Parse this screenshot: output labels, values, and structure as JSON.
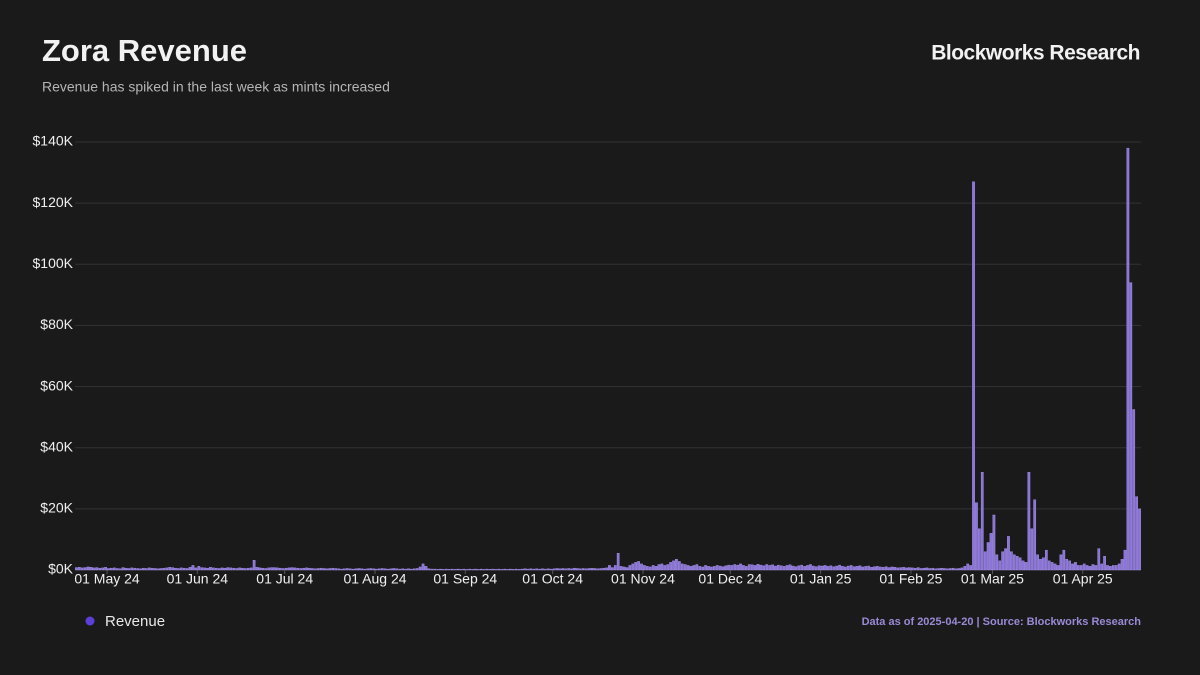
{
  "chart_data": {
    "type": "bar",
    "title": "Zora Revenue",
    "subtitle": "Revenue has spiked in the last week as mints increased",
    "brand": "Blockworks Research",
    "source_note": "Data as of 2025-04-20 | Source: Blockworks Research",
    "series": [
      {
        "name": "Revenue",
        "color": "#8a73d9",
        "legend_color": "#5b3fd6",
        "values": [
          800,
          900,
          700,
          800,
          1000,
          900,
          700,
          800,
          600,
          700,
          900,
          500,
          600,
          700,
          500,
          400,
          800,
          600,
          500,
          700,
          600,
          500,
          400,
          600,
          500,
          700,
          600,
          500,
          400,
          500,
          600,
          700,
          900,
          800,
          600,
          500,
          700,
          600,
          500,
          900,
          1500,
          700,
          1200,
          800,
          700,
          600,
          900,
          700,
          600,
          500,
          700,
          600,
          800,
          700,
          600,
          500,
          700,
          600,
          500,
          600,
          700,
          3200,
          900,
          700,
          600,
          500,
          700,
          800,
          800,
          700,
          600,
          500,
          600,
          700,
          800,
          700,
          600,
          500,
          600,
          700,
          600,
          500,
          400,
          500,
          600,
          500,
          400,
          500,
          600,
          500,
          400,
          300,
          400,
          500,
          400,
          300,
          400,
          500,
          400,
          300,
          400,
          500,
          400,
          300,
          400,
          500,
          400,
          300,
          400,
          500,
          400,
          300,
          400,
          300,
          400,
          300,
          400,
          500,
          1000,
          2000,
          1200,
          400,
          300,
          300,
          200,
          300,
          200,
          300,
          200,
          300,
          200,
          300,
          200,
          300,
          200,
          300,
          200,
          300,
          200,
          300,
          200,
          300,
          200,
          300,
          200,
          300,
          200,
          300,
          200,
          300,
          200,
          300,
          200,
          300,
          400,
          300,
          400,
          300,
          400,
          300,
          400,
          300,
          400,
          300,
          400,
          500,
          400,
          500,
          400,
          500,
          400,
          600,
          500,
          400,
          500,
          400,
          500,
          600,
          500,
          400,
          500,
          600,
          700,
          1500,
          800,
          1500,
          5500,
          1200,
          1000,
          800,
          1500,
          2000,
          2500,
          2800,
          2000,
          1500,
          1200,
          1000,
          1500,
          1200,
          1800,
          2000,
          1500,
          1800,
          2500,
          3000,
          3500,
          2800,
          2000,
          1800,
          1500,
          1200,
          1500,
          1800,
          1200,
          1000,
          1500,
          1200,
          1000,
          1200,
          1500,
          1300,
          1100,
          1400,
          1600,
          1500,
          1800,
          1600,
          2000,
          1500,
          1200,
          1800,
          1700,
          1500,
          1900,
          1600,
          1400,
          1800,
          1500,
          1700,
          1300,
          1600,
          1400,
          1200,
          1500,
          1700,
          1300,
          1100,
          1400,
          1600,
          1200,
          1500,
          1800,
          1300,
          1100,
          1400,
          1300,
          1500,
          1200,
          1400,
          1100,
          1300,
          1600,
          1200,
          1000,
          1300,
          1500,
          1100,
          1200,
          1400,
          1000,
          1200,
          1300,
          900,
          1100,
          1200,
          1000,
          900,
          1100,
          800,
          1000,
          900,
          700,
          800,
          900,
          700,
          800,
          700,
          600,
          800,
          500,
          600,
          700,
          500,
          600,
          400,
          500,
          600,
          500,
          400,
          500,
          600,
          400,
          500,
          700,
          1200,
          2000,
          1500,
          127000,
          22000,
          13500,
          32000,
          6000,
          9000,
          12000,
          18000,
          5000,
          3000,
          6000,
          7000,
          11000,
          6000,
          5000,
          4500,
          4000,
          3000,
          2500,
          32000,
          13500,
          23000,
          5000,
          3500,
          4000,
          6500,
          3000,
          2500,
          2000,
          1500,
          5000,
          6500,
          3500,
          3000,
          2000,
          2500,
          1500,
          1500,
          2000,
          1500,
          1200,
          1800,
          1500,
          7000,
          2000,
          4500,
          1500,
          1200,
          1500,
          1500,
          2000,
          3500,
          6500,
          138000,
          94000,
          52500,
          24000,
          20000
        ]
      }
    ],
    "x": [
      "2024-04-20",
      "2024-04-21",
      "2024-04-22",
      "2024-04-23",
      "2024-04-24",
      "2024-04-25",
      "2024-04-26",
      "2024-04-27",
      "2024-04-28",
      "2024-04-29",
      "2024-04-30",
      "2024-05-01",
      "2024-05-02",
      "2024-05-03",
      "2024-05-04",
      "2024-05-05",
      "2024-05-06",
      "2024-05-07",
      "2024-05-08",
      "2024-05-09",
      "2024-05-10",
      "2024-05-11",
      "2024-05-12",
      "2024-05-13",
      "2024-05-14",
      "2024-05-15",
      "2024-05-16",
      "2024-05-17",
      "2024-05-18",
      "2024-05-19",
      "2024-05-20",
      "2024-05-21",
      "2024-05-22",
      "2024-05-23",
      "2024-05-24",
      "2024-05-25",
      "2024-05-26",
      "2024-05-27",
      "2024-05-28",
      "2024-05-29",
      "2024-05-30",
      "2024-05-31",
      "2024-06-01",
      "2024-06-02",
      "2024-06-03",
      "2024-06-04",
      "2024-06-05",
      "2024-06-06",
      "2024-06-07",
      "2024-06-08",
      "2024-06-09",
      "2024-06-10",
      "2024-06-11",
      "2024-06-12",
      "2024-06-13",
      "2024-06-14",
      "2024-06-15",
      "2024-06-16",
      "2024-06-17",
      "2024-06-18",
      "2024-06-19",
      "2024-06-20",
      "2024-06-21",
      "2024-06-22",
      "2024-06-23",
      "2024-06-24",
      "2024-06-25",
      "2024-06-26",
      "2024-06-27",
      "2024-06-28",
      "2024-06-29",
      "2024-06-30",
      "2024-07-01",
      "2024-07-02",
      "2024-07-03",
      "2024-07-04",
      "2024-07-05",
      "2024-07-06",
      "2024-07-07",
      "2024-07-08",
      "2024-07-09",
      "2024-07-10",
      "2024-07-11",
      "2024-07-12",
      "2024-07-13",
      "2024-07-14",
      "2024-07-15",
      "2024-07-16",
      "2024-07-17",
      "2024-07-18",
      "2024-07-19",
      "2024-07-20",
      "2024-07-21",
      "2024-07-22",
      "2024-07-23",
      "2024-07-24",
      "2024-07-25",
      "2024-07-26",
      "2024-07-27",
      "2024-07-28",
      "2024-07-29",
      "2024-07-30",
      "2024-07-31",
      "2024-08-01",
      "2024-08-02",
      "2024-08-03",
      "2024-08-04",
      "2024-08-05",
      "2024-08-06",
      "2024-08-07",
      "2024-08-08",
      "2024-08-09",
      "2024-08-10",
      "2024-08-11",
      "2024-08-12",
      "2024-08-13",
      "2024-08-14",
      "2024-08-15",
      "2024-08-16",
      "2024-08-17",
      "2024-08-18",
      "2024-08-19",
      "2024-08-20",
      "2024-08-21",
      "2024-08-22",
      "2024-08-23",
      "2024-08-24",
      "2024-08-25",
      "2024-08-26",
      "2024-08-27",
      "2024-08-28",
      "2024-08-29",
      "2024-08-30",
      "2024-08-31",
      "2024-09-01",
      "2024-09-02",
      "2024-09-03",
      "2024-09-04",
      "2024-09-05",
      "2024-09-06",
      "2024-09-07",
      "2024-09-08",
      "2024-09-09",
      "2024-09-10",
      "2024-09-11",
      "2024-09-12",
      "2024-09-13",
      "2024-09-14",
      "2024-09-15",
      "2024-09-16",
      "2024-09-17",
      "2024-09-18",
      "2024-09-19",
      "2024-09-20",
      "2024-09-21",
      "2024-09-22",
      "2024-09-23",
      "2024-09-24",
      "2024-09-25",
      "2024-09-26",
      "2024-09-27",
      "2024-09-28",
      "2024-09-29",
      "2024-09-30",
      "2024-10-01",
      "2024-10-02",
      "2024-10-03",
      "2024-10-04",
      "2024-10-05",
      "2024-10-06",
      "2024-10-07",
      "2024-10-08",
      "2024-10-09",
      "2024-10-10",
      "2024-10-11",
      "2024-10-12",
      "2024-10-13",
      "2024-10-14",
      "2024-10-15",
      "2024-10-16",
      "2024-10-17",
      "2024-10-18",
      "2024-10-19",
      "2024-10-20",
      "2024-10-21",
      "2024-10-22",
      "2024-10-23",
      "2024-10-24",
      "2024-10-25",
      "2024-10-26",
      "2024-10-27",
      "2024-10-28",
      "2024-10-29",
      "2024-10-30",
      "2024-10-31",
      "2024-11-01",
      "2024-11-02",
      "2024-11-03",
      "2024-11-04",
      "2024-11-05",
      "2024-11-06",
      "2024-11-07",
      "2024-11-08",
      "2024-11-09",
      "2024-11-10",
      "2024-11-11",
      "2024-11-12",
      "2024-11-13",
      "2024-11-14",
      "2024-11-15",
      "2024-11-16",
      "2024-11-17",
      "2024-11-18",
      "2024-11-19",
      "2024-11-20",
      "2024-11-21",
      "2024-11-22",
      "2024-11-23",
      "2024-11-24",
      "2024-11-25",
      "2024-11-26",
      "2024-11-27",
      "2024-11-28",
      "2024-11-29",
      "2024-11-30",
      "2024-12-01",
      "2024-12-02",
      "2024-12-03",
      "2024-12-04",
      "2024-12-05",
      "2024-12-06",
      "2024-12-07",
      "2024-12-08",
      "2024-12-09",
      "2024-12-10",
      "2024-12-11",
      "2024-12-12",
      "2024-12-13",
      "2024-12-14",
      "2024-12-15",
      "2024-12-16",
      "2024-12-17",
      "2024-12-18",
      "2024-12-19",
      "2024-12-20",
      "2024-12-21",
      "2024-12-22",
      "2024-12-23",
      "2024-12-24",
      "2024-12-25",
      "2024-12-26",
      "2024-12-27",
      "2024-12-28",
      "2024-12-29",
      "2024-12-30",
      "2024-12-31",
      "2025-01-01",
      "2025-01-02",
      "2025-01-03",
      "2025-01-04",
      "2025-01-05",
      "2025-01-06",
      "2025-01-07",
      "2025-01-08",
      "2025-01-09",
      "2025-01-10",
      "2025-01-11",
      "2025-01-12",
      "2025-01-13",
      "2025-01-14",
      "2025-01-15",
      "2025-01-16",
      "2025-01-17",
      "2025-01-18",
      "2025-01-19",
      "2025-01-20",
      "2025-01-21",
      "2025-01-22",
      "2025-01-23",
      "2025-01-24",
      "2025-01-25",
      "2025-01-26",
      "2025-01-27",
      "2025-01-28",
      "2025-01-29",
      "2025-01-30",
      "2025-01-31",
      "2025-02-01",
      "2025-02-02",
      "2025-02-03",
      "2025-02-04",
      "2025-02-05",
      "2025-02-06",
      "2025-02-07",
      "2025-02-08",
      "2025-02-09",
      "2025-02-10",
      "2025-02-11",
      "2025-02-12",
      "2025-02-13",
      "2025-02-14",
      "2025-02-15",
      "2025-02-16",
      "2025-02-17",
      "2025-02-18",
      "2025-02-19",
      "2025-02-20",
      "2025-02-21",
      "2025-02-22",
      "2025-02-23",
      "2025-02-24",
      "2025-02-25",
      "2025-02-26",
      "2025-02-27",
      "2025-02-28",
      "2025-03-01",
      "2025-03-02",
      "2025-03-03",
      "2025-03-04",
      "2025-03-05",
      "2025-03-06",
      "2025-03-07",
      "2025-03-08",
      "2025-03-09",
      "2025-03-10",
      "2025-03-11",
      "2025-03-12",
      "2025-03-13",
      "2025-03-14",
      "2025-03-15",
      "2025-03-16",
      "2025-03-17",
      "2025-03-18",
      "2025-03-19",
      "2025-03-20",
      "2025-03-21",
      "2025-03-22",
      "2025-03-23",
      "2025-03-24",
      "2025-03-25",
      "2025-03-26",
      "2025-03-27",
      "2025-03-28",
      "2025-03-29",
      "2025-03-30",
      "2025-03-31",
      "2025-04-01",
      "2025-04-02",
      "2025-04-03",
      "2025-04-04",
      "2025-04-05",
      "2025-04-06",
      "2025-04-07",
      "2025-04-08",
      "2025-04-09",
      "2025-04-10",
      "2025-04-11",
      "2025-04-12",
      "2025-04-13",
      "2025-04-14",
      "2025-04-15",
      "2025-04-16",
      "2025-04-17",
      "2025-04-18",
      "2025-04-19",
      "2025-04-20"
    ],
    "xlim": [
      "2024-04-20",
      "2025-04-20"
    ],
    "xticks": [
      {
        "value": "2024-05-01",
        "label": "01 May 24"
      },
      {
        "value": "2024-06-01",
        "label": "01 Jun 24"
      },
      {
        "value": "2024-07-01",
        "label": "01 Jul 24"
      },
      {
        "value": "2024-08-01",
        "label": "01 Aug 24"
      },
      {
        "value": "2024-09-01",
        "label": "01 Sep 24"
      },
      {
        "value": "2024-10-01",
        "label": "01 Oct 24"
      },
      {
        "value": "2024-11-01",
        "label": "01 Nov 24"
      },
      {
        "value": "2024-12-01",
        "label": "01 Dec 24"
      },
      {
        "value": "2025-01-01",
        "label": "01 Jan 25"
      },
      {
        "value": "2025-02-01",
        "label": "01 Feb 25"
      },
      {
        "value": "2025-03-01",
        "label": "01 Mar 25"
      },
      {
        "value": "2025-04-01",
        "label": "01 Apr 25"
      }
    ],
    "ylim": [
      0,
      140000
    ],
    "yticks": [
      {
        "value": 0,
        "label": "$0K"
      },
      {
        "value": 20000,
        "label": "$20K"
      },
      {
        "value": 40000,
        "label": "$40K"
      },
      {
        "value": 60000,
        "label": "$60K"
      },
      {
        "value": 80000,
        "label": "$80K"
      },
      {
        "value": 100000,
        "label": "$100K"
      },
      {
        "value": 120000,
        "label": "$120K"
      },
      {
        "value": 140000,
        "label": "$140K"
      }
    ],
    "grid": true
  }
}
